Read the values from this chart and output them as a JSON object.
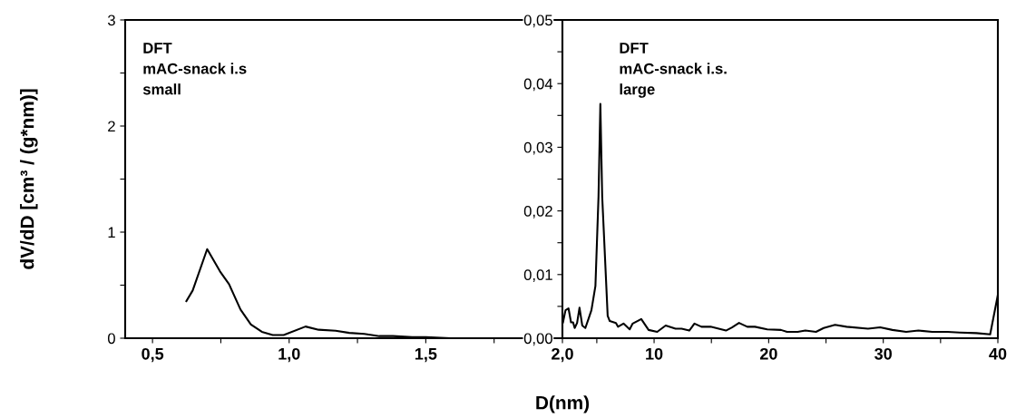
{
  "chart_data": [
    {
      "type": "line",
      "ylabel": "dV/dD [cm³ / (g*nm)]",
      "annotations": [
        "DFT\nmAC-snack i.s\nsmall"
      ],
      "x": [
        0.624,
        0.647,
        0.7,
        0.747,
        0.78,
        0.822,
        0.86,
        0.9,
        0.94,
        0.98,
        1.06,
        1.108,
        1.17,
        1.22,
        1.275,
        1.33,
        1.38,
        1.45,
        1.5,
        1.59,
        1.7,
        1.81,
        1.99
      ],
      "series": [
        {
          "color": "#000000",
          "values": [
            0.35,
            0.45,
            0.84,
            0.63,
            0.51,
            0.27,
            0.13,
            0.06,
            0.03,
            0.03,
            0.11,
            0.08,
            0.07,
            0.05,
            0.04,
            0.02,
            0.02,
            0.01,
            0.01,
            0,
            0,
            0,
            0
          ]
        }
      ],
      "xlim": [
        0.4,
        2.0
      ],
      "xticks": [
        {
          "value": 0.5,
          "label": "0,5"
        },
        {
          "value": 0.75,
          "label": null
        },
        {
          "value": 1.0,
          "label": "1,0"
        },
        {
          "value": 1.25,
          "label": null
        },
        {
          "value": 1.5,
          "label": "1,5"
        },
        {
          "value": 1.75,
          "label": null
        }
      ],
      "ylim": [
        0,
        3
      ],
      "yticks": [
        0,
        {
          "value": 0.5,
          "label": null
        },
        1,
        {
          "value": 1.5,
          "label": null
        },
        2,
        {
          "value": 2.5,
          "label": null
        },
        3
      ],
      "grid": false,
      "legend": false
    },
    {
      "type": "line",
      "xlabel": "D(nm)",
      "annotations": [
        "DFT\nmAC-snack i.s.\nlarge"
      ],
      "x": [
        2.05,
        2.27,
        2.53,
        2.75,
        2.93,
        3.07,
        3.28,
        3.49,
        3.73,
        4.0,
        4.27,
        4.53,
        4.88,
        5.15,
        5.31,
        5.47,
        5.95,
        6.13,
        6.67,
        6.85,
        7.33,
        7.87,
        8.13,
        8.88,
        9.52,
        10.27,
        11.01,
        11.87,
        12.4,
        13.07,
        13.52,
        14.13,
        14.93,
        16.27,
        16.8,
        17.41,
        18.13,
        18.8,
        19.87,
        21.07,
        21.6,
        22.53,
        23.2,
        24.13,
        24.8,
        25.79,
        26.8,
        28.67,
        29.73,
        30.8,
        32.0,
        33.07,
        34.27,
        35.6,
        36.67,
        38.13,
        39.33,
        40.0
      ],
      "series": [
        {
          "color": "#000000",
          "values": [
            0.0025,
            0.0044,
            0.0047,
            0.0025,
            0.0025,
            0.0016,
            0.0024,
            0.0048,
            0.002,
            0.0016,
            0.003,
            0.0044,
            0.0082,
            0.0223,
            0.0368,
            0.0223,
            0.0035,
            0.0027,
            0.0024,
            0.0018,
            0.0023,
            0.0014,
            0.0023,
            0.003,
            0.0013,
            0.001,
            0.002,
            0.0015,
            0.0015,
            0.0012,
            0.0023,
            0.0018,
            0.0018,
            0.0012,
            0.0017,
            0.0024,
            0.0018,
            0.0018,
            0.0014,
            0.0013,
            0.001,
            0.001,
            0.0012,
            0.001,
            0.0016,
            0.0021,
            0.0018,
            0.0015,
            0.0017,
            0.0013,
            0.001,
            0.0012,
            0.001,
            0.001,
            0.0009,
            0.0008,
            0.0006,
            0.0068
          ]
        }
      ],
      "xlim": [
        2,
        40
      ],
      "xticks": [
        {
          "value": 2,
          "label": "2,0"
        },
        {
          "value": 5,
          "label": null
        },
        10,
        {
          "value": 15,
          "label": null
        },
        20,
        {
          "value": 25,
          "label": null
        },
        30,
        {
          "value": 35,
          "label": null
        },
        40
      ],
      "ylim": [
        0,
        0.05
      ],
      "yticks": [
        {
          "value": 0,
          "label": "0,00"
        },
        {
          "value": 0.005,
          "label": null
        },
        {
          "value": 0.01,
          "label": "0,01"
        },
        {
          "value": 0.015,
          "label": null
        },
        {
          "value": 0.02,
          "label": "0,02"
        },
        {
          "value": 0.025,
          "label": null
        },
        {
          "value": 0.03,
          "label": "0,03"
        },
        {
          "value": 0.035,
          "label": null
        },
        {
          "value": 0.04,
          "label": "0,04"
        },
        {
          "value": 0.045,
          "label": null
        },
        {
          "value": 0.05,
          "label": "0,05"
        }
      ],
      "grid": false,
      "legend": false
    }
  ]
}
